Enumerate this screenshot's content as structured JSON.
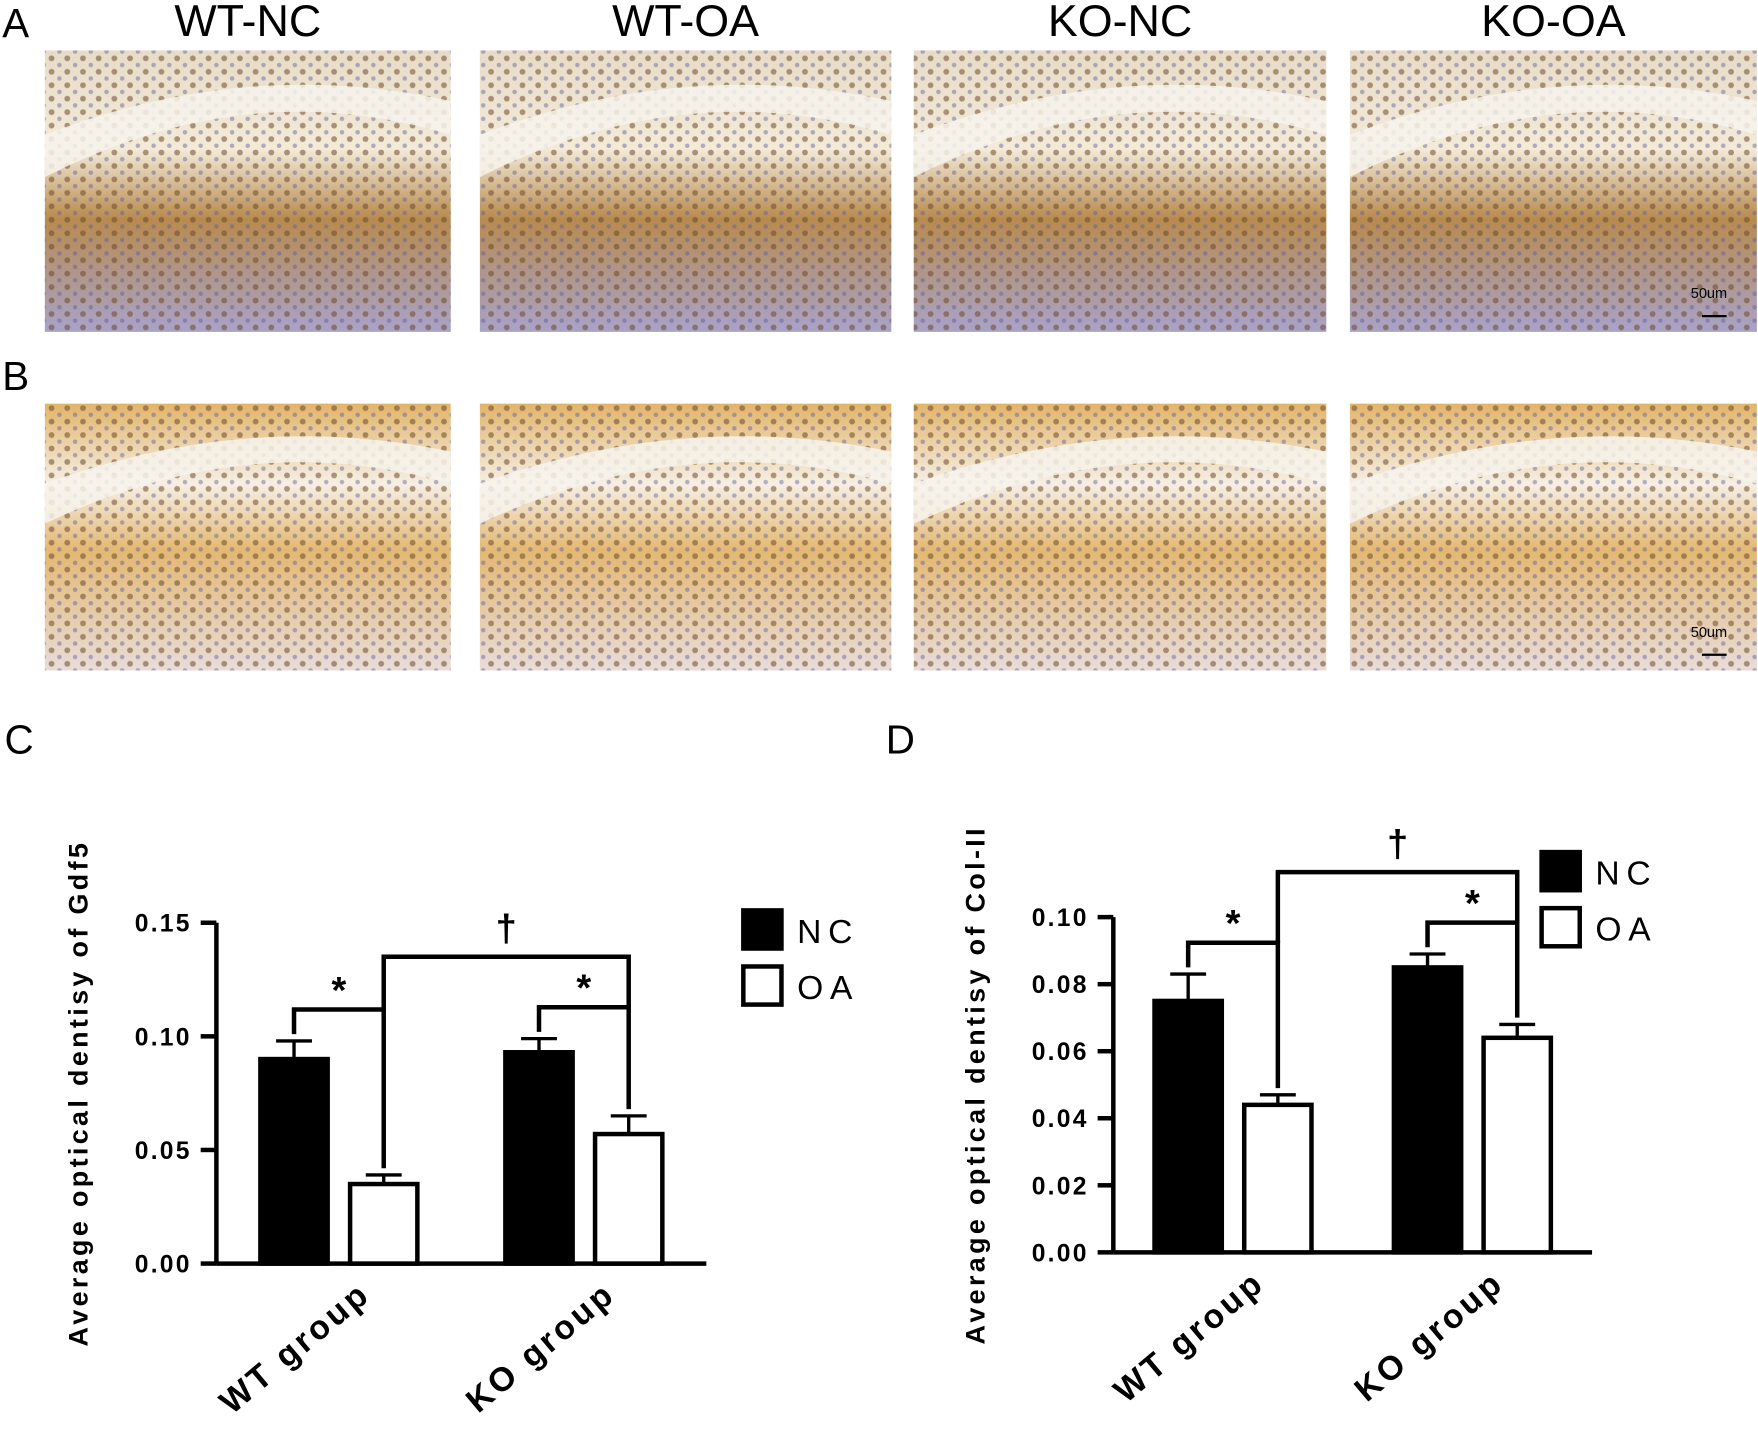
{
  "figure": {
    "panel_labels": [
      "A",
      "B",
      "C",
      "D"
    ],
    "column_titles": [
      "WT-NC",
      "WT-OA",
      "KO-NC",
      "KO-OA"
    ],
    "scale_labels": [
      "50um",
      "50um"
    ]
  },
  "chart_data": [
    {
      "type": "bar",
      "y_label": "Average optical dentisy of Gdf5",
      "categories": [
        "WT group",
        "KO group"
      ],
      "series": [
        {
          "name": "NC",
          "color": "#000000",
          "values": [
            0.09,
            0.093
          ],
          "errors": [
            0.008,
            0.006
          ]
        },
        {
          "name": "OA",
          "color": "#ffffff",
          "values": [
            0.035,
            0.057
          ],
          "errors": [
            0.004,
            0.008
          ]
        }
      ],
      "ylim": [
        0,
        0.15
      ],
      "yticks": [
        {
          "value": 0,
          "label": "0.00"
        },
        0.05,
        {
          "value": 0.1,
          "label": "0.10"
        },
        0.15
      ],
      "legend": "right",
      "annotations": [
        "*",
        "*",
        "†"
      ]
    },
    {
      "type": "bar",
      "y_label": "Average optical dentisy of Col-II",
      "categories": [
        "WT group",
        "KO group"
      ],
      "series": [
        {
          "name": "NC",
          "color": "#000000",
          "values": [
            0.075,
            0.085
          ],
          "errors": [
            0.008,
            0.004
          ]
        },
        {
          "name": "OA",
          "color": "#ffffff",
          "values": [
            0.044,
            0.064
          ],
          "errors": [
            0.003,
            0.004
          ]
        }
      ],
      "ylim": [
        0,
        0.1
      ],
      "yticks": [
        {
          "value": 0,
          "label": "0.00"
        },
        0.02,
        0.04,
        0.06,
        0.08,
        {
          "value": 0.1,
          "label": "0.10"
        }
      ],
      "legend": "right",
      "annotations": [
        "*",
        "*",
        "†"
      ]
    }
  ]
}
